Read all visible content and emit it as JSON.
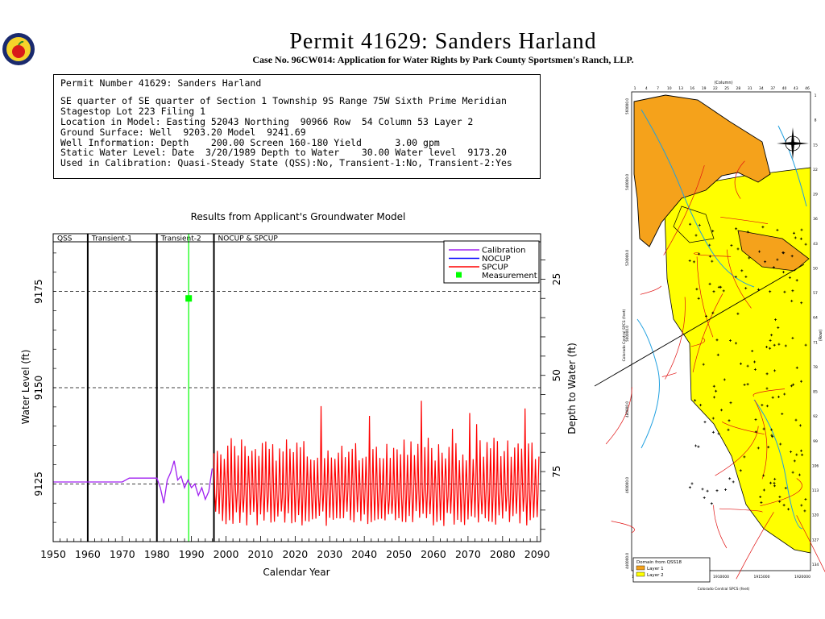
{
  "header": {
    "title": "Permit 41629:   Sanders Harland",
    "subtitle": "Case No. 96CW014: Application for Water Rights by Park County Sportsmen's Ranch, LLP."
  },
  "info": {
    "lines": [
      "Permit Number 41629: Sanders Harland",
      "",
      "SE quarter of SE quarter of Section 1 Township 9S Range 75W Sixth Prime Meridian",
      "Stagestop Lot 223 Filing 1",
      "Location in Model: Easting 52043 Northing  90966 Row  54 Column 53 Layer 2",
      "Ground Surface: Well  9203.20 Model  9241.69",
      "Well Information: Depth    200.00 Screen 160-180 Yield      3.00 gpm",
      "Static Water Level: Date  3/20/1989 Depth to Water    30.00 Water level  9173.20",
      "Used in Calibration: Quasi-Steady State (QSS):No, Transient-1:No, Transient-2:Yes"
    ]
  },
  "chart_data": {
    "type": "line",
    "title": "Results from Applicant's Groundwater Model",
    "xlabel": "Calendar Year",
    "ylabel": "Water Level (ft)",
    "y2label": "Depth to Water (ft)",
    "xlim": [
      1950,
      2091
    ],
    "ylim": [
      9110,
      9190
    ],
    "xticks": [
      1950,
      1960,
      1970,
      1980,
      1990,
      2000,
      2010,
      2020,
      2030,
      2040,
      2050,
      2060,
      2070,
      2080,
      2090
    ],
    "yticks": [
      9125,
      9150,
      9175
    ],
    "y2ticks": [
      25,
      50,
      75
    ],
    "ground_surface": 9203.2,
    "grid": true,
    "legend_position": "top-right",
    "periods": [
      {
        "label": "QSS",
        "start": 1950,
        "end": 1960
      },
      {
        "label": "Transient-1",
        "start": 1960,
        "end": 1980
      },
      {
        "label": "Transient-2",
        "start": 1980,
        "end": 1996.5
      },
      {
        "label": "NOCUP  &  SPCUP",
        "start": 1996.5,
        "end": 2091
      }
    ],
    "series": [
      {
        "name": "Calibration",
        "color": "#a020f0",
        "x": [
          1950,
          1970,
          1972,
          1980,
          1981,
          1982,
          1983,
          1984,
          1985,
          1986,
          1987,
          1988,
          1989,
          1990,
          1991,
          1992,
          1993,
          1994,
          1995,
          1996
        ],
        "y": [
          9125.5,
          9125.5,
          9126.5,
          9126.5,
          9124,
          9120,
          9126,
          9128,
          9131,
          9126,
          9127,
          9124,
          9126,
          9124,
          9125,
          9122,
          9124,
          9121,
          9123,
          9129
        ]
      },
      {
        "name": "NOCUP",
        "color": "#0000ff",
        "x": [],
        "y": []
      },
      {
        "name": "SPCUP",
        "color": "#ff0000",
        "x": [
          1996.5,
          2090.5
        ],
        "y": [
          9122,
          9122
        ],
        "pattern": "seasonal oscillation roughly between 9115 and 9135 with peaks up to about 9140"
      },
      {
        "name": "Measurement",
        "color": "#00ff00",
        "marker": "square",
        "x": [
          1989.2
        ],
        "y": [
          9173.2
        ]
      }
    ]
  },
  "map": {
    "legend_title": "Domain  from  QSS18",
    "legend_items": [
      {
        "label": "Layer 1",
        "color": "#f5a21b"
      },
      {
        "label": "Layer 2",
        "color": "#ffff00"
      }
    ],
    "top_label": "(Column)",
    "left_label": "Colorado Central SPCS (feet)",
    "right_label": "(Row)",
    "bottom_label": "Colorado Central SPCS (feet)",
    "left_ticks": [
      "560000.0",
      "540000.0",
      "520000.0",
      "500000.0",
      "480000.0",
      "460000.0",
      "440000.0"
    ],
    "bottom_ticks": [
      "1900000",
      "1905000",
      "1910000",
      "1915000",
      "1920000"
    ],
    "top_ticks": [
      "1",
      "4",
      "7",
      "10",
      "13",
      "16",
      "19",
      "22",
      "25",
      "28",
      "31",
      "34",
      "37",
      "40",
      "43",
      "46"
    ],
    "right_ticks": [
      "1",
      "8",
      "15",
      "22",
      "29",
      "36",
      "43",
      "50",
      "57",
      "64",
      "71",
      "78",
      "85",
      "92",
      "99",
      "106",
      "113",
      "120",
      "127",
      "134"
    ]
  },
  "colors": {
    "calibration": "#a020f0",
    "nocup": "#0000ff",
    "spcup": "#ff0000",
    "measurement": "#00ff00",
    "layer1": "#f5a21b",
    "layer2": "#ffff00"
  }
}
